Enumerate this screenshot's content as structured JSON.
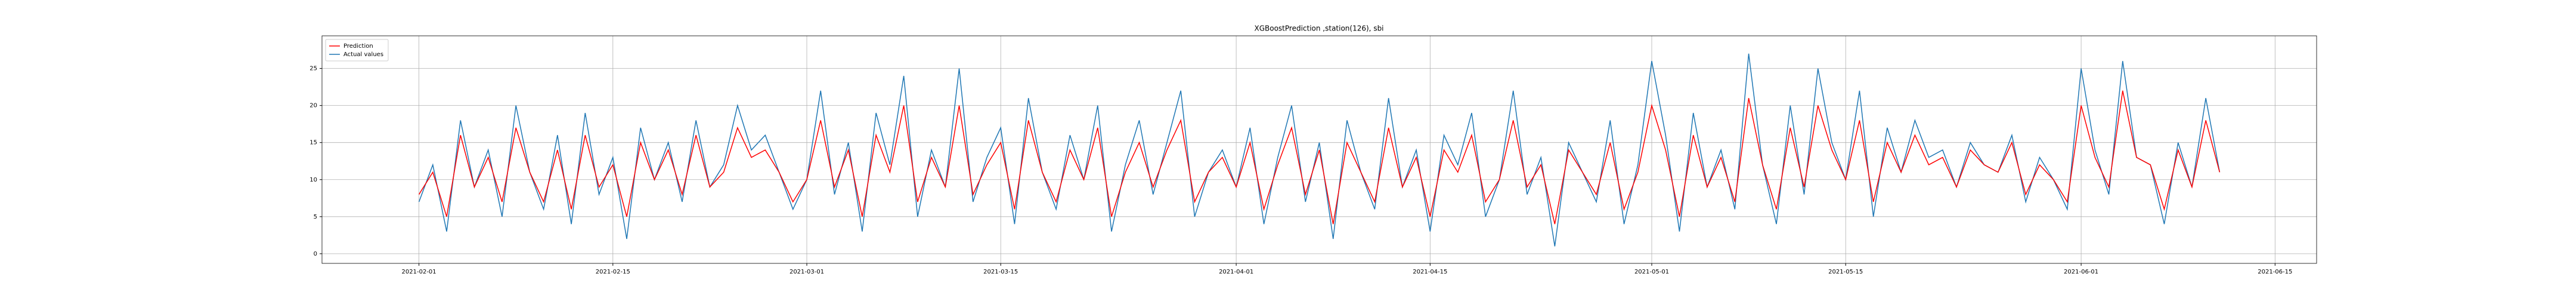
{
  "chart_data": {
    "type": "line",
    "title": "XGBoostPrediction ,station(126), sbi",
    "x": [
      "2021-02-01",
      "2021-02-02",
      "2021-02-03",
      "2021-02-04",
      "2021-02-05",
      "2021-02-06",
      "2021-02-07",
      "2021-02-08",
      "2021-02-09",
      "2021-02-10",
      "2021-02-11",
      "2021-02-12",
      "2021-02-13",
      "2021-02-14",
      "2021-02-15",
      "2021-02-16",
      "2021-02-17",
      "2021-02-18",
      "2021-02-19",
      "2021-02-20",
      "2021-02-21",
      "2021-02-22",
      "2021-02-23",
      "2021-02-24",
      "2021-02-25",
      "2021-02-26",
      "2021-02-27",
      "2021-02-28",
      "2021-03-01",
      "2021-03-02",
      "2021-03-03",
      "2021-03-04",
      "2021-03-05",
      "2021-03-06",
      "2021-03-07",
      "2021-03-08",
      "2021-03-09",
      "2021-03-10",
      "2021-03-11",
      "2021-03-12",
      "2021-03-13",
      "2021-03-14",
      "2021-03-15",
      "2021-03-16",
      "2021-03-17",
      "2021-03-18",
      "2021-03-19",
      "2021-03-20",
      "2021-03-21",
      "2021-03-22",
      "2021-03-23",
      "2021-03-24",
      "2021-03-25",
      "2021-03-26",
      "2021-03-27",
      "2021-03-28",
      "2021-03-29",
      "2021-03-30",
      "2021-03-31",
      "2021-04-01",
      "2021-04-02",
      "2021-04-03",
      "2021-04-04",
      "2021-04-05",
      "2021-04-06",
      "2021-04-07",
      "2021-04-08",
      "2021-04-09",
      "2021-04-10",
      "2021-04-11",
      "2021-04-12",
      "2021-04-13",
      "2021-04-14",
      "2021-04-15",
      "2021-04-16",
      "2021-04-17",
      "2021-04-18",
      "2021-04-19",
      "2021-04-20",
      "2021-04-21",
      "2021-04-22",
      "2021-04-23",
      "2021-04-24",
      "2021-04-25",
      "2021-04-26",
      "2021-04-27",
      "2021-04-28",
      "2021-04-29",
      "2021-04-30",
      "2021-05-01",
      "2021-05-02",
      "2021-05-03",
      "2021-05-04",
      "2021-05-05",
      "2021-05-06",
      "2021-05-07",
      "2021-05-08",
      "2021-05-09",
      "2021-05-10",
      "2021-05-11",
      "2021-05-12",
      "2021-05-13",
      "2021-05-14",
      "2021-05-15",
      "2021-05-16",
      "2021-05-17",
      "2021-05-18",
      "2021-05-19",
      "2021-05-20",
      "2021-05-21",
      "2021-05-22",
      "2021-05-23",
      "2021-05-24",
      "2021-05-25",
      "2021-05-26",
      "2021-05-27",
      "2021-05-28",
      "2021-05-29",
      "2021-05-30",
      "2021-05-31",
      "2021-06-01",
      "2021-06-02",
      "2021-06-03",
      "2021-06-04",
      "2021-06-05",
      "2021-06-06",
      "2021-06-07",
      "2021-06-08",
      "2021-06-09",
      "2021-06-10",
      "2021-06-11"
    ],
    "series": [
      {
        "name": "Prediction",
        "color": "#ff0000",
        "values": [
          8,
          11,
          5,
          16,
          9,
          13,
          7,
          17,
          11,
          7,
          14,
          6,
          16,
          9,
          12,
          5,
          15,
          10,
          14,
          8,
          16,
          9,
          11,
          17,
          13,
          14,
          11,
          7,
          10,
          18,
          9,
          14,
          5,
          16,
          11,
          20,
          7,
          13,
          9,
          20,
          8,
          12,
          15,
          6,
          18,
          11,
          7,
          14,
          10,
          17,
          5,
          11,
          15,
          9,
          14,
          18,
          7,
          11,
          13,
          9,
          15,
          6,
          12,
          17,
          8,
          14,
          4,
          15,
          11,
          7,
          17,
          9,
          13,
          5,
          14,
          11,
          16,
          7,
          10,
          18,
          9,
          12,
          4,
          14,
          11,
          8,
          15,
          6,
          11,
          20,
          14,
          5,
          16,
          9,
          13,
          7,
          21,
          12,
          6,
          17,
          9,
          20,
          14,
          10,
          18,
          7,
          15,
          11,
          16,
          12,
          13,
          9,
          14,
          12,
          11,
          15,
          8,
          12,
          10,
          7,
          20,
          13,
          9,
          22,
          13,
          12,
          6,
          14,
          9,
          18,
          11
        ]
      },
      {
        "name": "Actual values",
        "color": "#1f77b4",
        "values": [
          7,
          12,
          3,
          18,
          9,
          14,
          5,
          20,
          11,
          6,
          16,
          4,
          19,
          8,
          13,
          2,
          17,
          10,
          15,
          7,
          18,
          9,
          12,
          20,
          14,
          16,
          11,
          6,
          10,
          22,
          8,
          15,
          3,
          19,
          12,
          24,
          5,
          14,
          9,
          25,
          7,
          13,
          17,
          4,
          21,
          11,
          6,
          16,
          10,
          20,
          3,
          12,
          18,
          8,
          15,
          22,
          5,
          11,
          14,
          9,
          17,
          4,
          13,
          20,
          7,
          15,
          2,
          18,
          11,
          6,
          21,
          9,
          14,
          3,
          16,
          12,
          19,
          5,
          10,
          22,
          8,
          13,
          1,
          15,
          11,
          7,
          18,
          4,
          12,
          26,
          16,
          3,
          19,
          9,
          14,
          6,
          27,
          12,
          4,
          20,
          8,
          25,
          15,
          10,
          22,
          5,
          17,
          11,
          18,
          13,
          14,
          9,
          15,
          12,
          11,
          16,
          7,
          13,
          10,
          6,
          25,
          14,
          8,
          26,
          13,
          12,
          4,
          15,
          9,
          21,
          11
        ]
      }
    ],
    "xlim": [
      "2021-01-25",
      "2021-06-18"
    ],
    "xticks": [
      "2021-02-01",
      "2021-02-15",
      "2021-03-01",
      "2021-03-15",
      "2021-04-01",
      "2021-04-15",
      "2021-05-01",
      "2021-05-15",
      "2021-06-01",
      "2021-06-15"
    ],
    "ylim": [
      -1.3,
      29.4
    ],
    "yticks": [
      0,
      5,
      10,
      15,
      20,
      25
    ],
    "grid": true,
    "legend": "upper left"
  }
}
